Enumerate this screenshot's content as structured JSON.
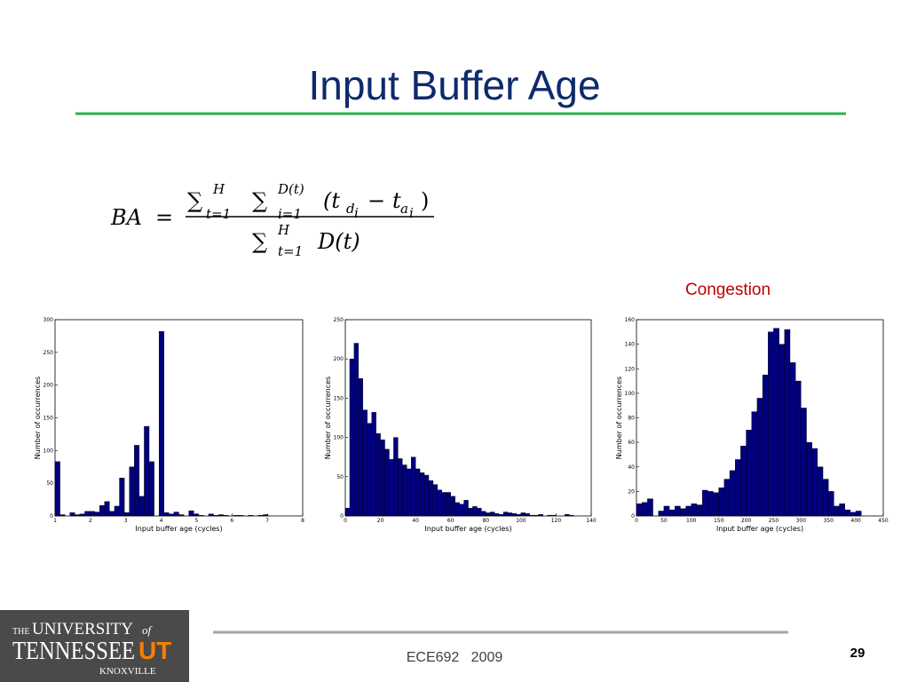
{
  "slide": {
    "title": "Input Buffer Age",
    "formula": [
      "BA",
      "=",
      "∑",
      "H",
      "t=1",
      "∑",
      "D(t)",
      "i=1",
      "(t",
      "d",
      "i",
      "−",
      "t",
      "a",
      "i",
      ")",
      "∑",
      "H",
      "t=1",
      "D(t)"
    ],
    "footer": "ECE692   2009",
    "page": "29",
    "logo": {
      "line1": "THE",
      "line2": "UNIVERSITY",
      "line3": "of",
      "line4": "TENNESSEE",
      "line5": "UT",
      "line6": "KNOXVILLE"
    }
  },
  "chart_data": [
    {
      "type": "histogram",
      "xlabel": "Input buffer age (cycles)",
      "ylabel": "Number of occurrences",
      "color": "#00007f",
      "bins": [
        1,
        1.14,
        1.28,
        1.42,
        1.56,
        1.7,
        1.84,
        1.98,
        2.12,
        2.26,
        2.4,
        2.54,
        2.68,
        2.82,
        2.96,
        3.1,
        3.24,
        3.38,
        3.52,
        3.66,
        3.8,
        3.94,
        4.08,
        4.22,
        4.36,
        4.5,
        4.64,
        4.78,
        4.92,
        5.06,
        5.2,
        5.34,
        5.48,
        5.62,
        5.76,
        5.9,
        6.04,
        6.18,
        6.32,
        6.46,
        6.6,
        6.74,
        6.88,
        7.02,
        7.16,
        7.3,
        7.44,
        7.58,
        7.72,
        7.86,
        8
      ],
      "values": [
        83,
        2,
        0,
        5,
        2,
        3,
        7,
        7,
        6,
        16,
        22,
        7,
        15,
        58,
        5,
        75,
        108,
        30,
        137,
        83,
        0,
        282,
        5,
        3,
        6,
        2,
        0,
        8,
        3,
        1,
        0,
        3,
        1,
        2,
        1,
        0,
        1,
        1,
        0,
        1,
        0,
        1,
        2,
        0,
        0,
        0,
        0,
        0,
        0,
        0
      ],
      "xlim": [
        1,
        8
      ],
      "xticks": [
        1,
        2,
        3,
        4,
        5,
        6,
        7,
        8
      ],
      "ylim": [
        0,
        300
      ],
      "yticks": [
        0,
        50,
        100,
        150,
        200,
        250,
        300
      ]
    },
    {
      "type": "histogram",
      "xlabel": "Input buffer age (cycles)",
      "ylabel": "Number of occurrences",
      "color": "#00007f",
      "bins": [
        0,
        2.5,
        5,
        7.5,
        10,
        12.5,
        15,
        17.5,
        20,
        22.5,
        25,
        27.5,
        30,
        32.5,
        35,
        37.5,
        40,
        42.5,
        45,
        47.5,
        50,
        52.5,
        55,
        57.5,
        60,
        62.5,
        65,
        67.5,
        70,
        72.5,
        75,
        77.5,
        80,
        82.5,
        85,
        87.5,
        90,
        92.5,
        95,
        97.5,
        100,
        102.5,
        105,
        107.5,
        110,
        112.5,
        115,
        117.5,
        120,
        122.5,
        125,
        127.5,
        130
      ],
      "values": [
        10,
        200,
        220,
        175,
        135,
        118,
        132,
        105,
        97,
        85,
        72,
        100,
        73,
        65,
        60,
        75,
        60,
        55,
        52,
        45,
        40,
        33,
        30,
        30,
        25,
        17,
        15,
        20,
        10,
        12,
        10,
        6,
        4,
        5,
        3,
        2,
        5,
        4,
        3,
        2,
        4,
        3,
        1,
        1,
        2,
        0,
        1,
        1,
        0,
        0,
        2,
        1
      ],
      "xlim": [
        0,
        140
      ],
      "xticks": [
        0,
        20,
        40,
        60,
        80,
        100,
        120,
        140
      ],
      "ylim": [
        0,
        250
      ],
      "yticks": [
        0,
        50,
        100,
        150,
        200,
        250
      ]
    },
    {
      "type": "histogram",
      "annotation": "Congestion",
      "xlabel": "Input buffer age (cycles)",
      "ylabel": "Number of occurrences",
      "color": "#00007f",
      "bins": [
        0,
        10,
        20,
        30,
        40,
        50,
        60,
        70,
        80,
        90,
        100,
        110,
        120,
        130,
        140,
        150,
        160,
        170,
        180,
        190,
        200,
        210,
        220,
        230,
        240,
        250,
        260,
        270,
        280,
        290,
        300,
        310,
        320,
        330,
        340,
        350,
        360,
        370,
        380,
        390,
        400,
        410,
        420,
        430,
        440,
        450
      ],
      "values": [
        10,
        11,
        14,
        0,
        4,
        8,
        5,
        8,
        6,
        8,
        10,
        9,
        21,
        20,
        19,
        23,
        30,
        37,
        46,
        57,
        70,
        85,
        96,
        115,
        150,
        153,
        140,
        152,
        125,
        110,
        88,
        60,
        55,
        40,
        30,
        20,
        8,
        10,
        5,
        3,
        4,
        0,
        0,
        0,
        0
      ],
      "xlim": [
        0,
        450
      ],
      "xticks": [
        0,
        50,
        100,
        150,
        200,
        250,
        300,
        350,
        400,
        450
      ],
      "ylim": [
        0,
        160
      ],
      "yticks": [
        0,
        20,
        40,
        60,
        80,
        100,
        120,
        140,
        160
      ]
    }
  ]
}
